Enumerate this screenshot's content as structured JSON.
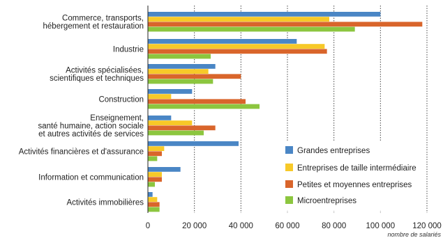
{
  "chart_data": {
    "type": "bar",
    "orientation": "horizontal",
    "categories": [
      [
        "Commerce, transports,",
        "hébergement et restauration"
      ],
      [
        "Industrie"
      ],
      [
        "Activités spécialisées,",
        "scientifiques et techniques"
      ],
      [
        "Construction"
      ],
      [
        "Enseignement,",
        "santé humaine, action sociale",
        "et autres activités de services"
      ],
      [
        "Activités financières et d'assurance"
      ],
      [
        "Information et communication"
      ],
      [
        "Activités immobilières"
      ]
    ],
    "series": [
      {
        "name": "Grandes entreprises",
        "color": "#4a86c5",
        "values": [
          100000,
          64000,
          29000,
          19000,
          10000,
          39000,
          14000,
          2000
        ]
      },
      {
        "name": "Entreprises de taille intermédiaire",
        "color": "#f7c928",
        "values": [
          78000,
          76000,
          26000,
          10000,
          19000,
          7000,
          6000,
          4000
        ]
      },
      {
        "name": "Petites et moyennes entreprises",
        "color": "#d9652b",
        "values": [
          118000,
          77000,
          40000,
          42000,
          29000,
          6000,
          6000,
          5000
        ]
      },
      {
        "name": "Microentreprises",
        "color": "#8cc63f",
        "values": [
          89000,
          27000,
          28000,
          48000,
          24000,
          4000,
          3000,
          5000
        ]
      }
    ],
    "xlim": [
      0,
      120000
    ],
    "x_ticks": [
      "0",
      "20 000",
      "40 000",
      "60 000",
      "80 000",
      "100 000",
      "120 000"
    ],
    "xlabel": "nombre de salariés",
    "title": "",
    "grid": "vertical dotted",
    "legend_position": "bottom-right"
  }
}
